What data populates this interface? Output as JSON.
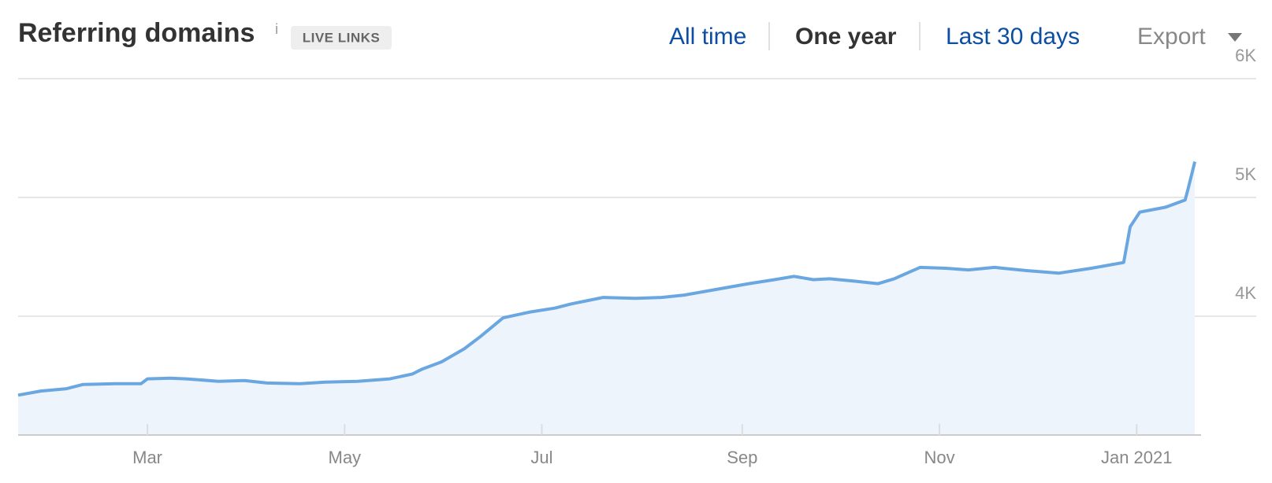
{
  "chart_data": {
    "type": "area",
    "title": "Referring domains",
    "info_icon": "i",
    "badge": "LIVE LINKS",
    "time_ranges": [
      "All time",
      "One year",
      "Last 30 days"
    ],
    "selected_range": 1,
    "export_label": "Export",
    "color": "#6aa7e0",
    "fill": "#eef4fc",
    "grid": true,
    "x": [
      "2020-01-21",
      "2020-01-28",
      "2020-02-05",
      "2020-02-10",
      "2020-02-20",
      "2020-02-28",
      "2020-03-01",
      "2020-03-08",
      "2020-03-13",
      "2020-03-23",
      "2020-03-31",
      "2020-04-07",
      "2020-04-17",
      "2020-04-25",
      "2020-05-05",
      "2020-05-15",
      "2020-05-22",
      "2020-05-25",
      "2020-05-31",
      "2020-06-07",
      "2020-06-12",
      "2020-06-19",
      "2020-06-27",
      "2020-07-05",
      "2020-07-10",
      "2020-07-20",
      "2020-07-30",
      "2020-08-07",
      "2020-08-14",
      "2020-08-24",
      "2020-09-03",
      "2020-09-11",
      "2020-09-17",
      "2020-09-23",
      "2020-09-28",
      "2020-10-06",
      "2020-10-13",
      "2020-10-18",
      "2020-10-26",
      "2020-11-03",
      "2020-11-10",
      "2020-11-18",
      "2020-11-28",
      "2020-12-08",
      "2020-12-18",
      "2020-12-28",
      "2020-12-30",
      "2021-01-02",
      "2021-01-10",
      "2021-01-16",
      "2021-01-17",
      "2021-01-19"
    ],
    "values": [
      3336,
      3370,
      3390,
      3425,
      3432,
      3432,
      3473,
      3479,
      3473,
      3452,
      3459,
      3438,
      3432,
      3445,
      3452,
      3473,
      3514,
      3555,
      3616,
      3726,
      3829,
      3986,
      4034,
      4068,
      4103,
      4158,
      4151,
      4158,
      4178,
      4226,
      4274,
      4308,
      4336,
      4308,
      4315,
      4295,
      4274,
      4315,
      4411,
      4404,
      4390,
      4411,
      4384,
      4363,
      4404,
      4452,
      4753,
      4877,
      4918,
      4979,
      5082,
      5301
    ],
    "xlim": [
      "2020-01-21",
      "2021-02-07"
    ],
    "xticks": [
      {
        "value": "2020-03-01",
        "label": "Mar"
      },
      {
        "value": "2020-05-01",
        "label": "May"
      },
      {
        "value": "2020-07-01",
        "label": "Jul"
      },
      {
        "value": "2020-09-01",
        "label": "Sep"
      },
      {
        "value": "2020-11-01",
        "label": "Nov"
      },
      {
        "value": "2021-01-01",
        "label": "Jan 2021"
      }
    ],
    "ylim": [
      3000,
      6000
    ],
    "yticks": [
      {
        "value": 4000,
        "label": "4K"
      },
      {
        "value": 5000,
        "label": "5K"
      },
      {
        "value": 6000,
        "label": "6K"
      }
    ]
  }
}
